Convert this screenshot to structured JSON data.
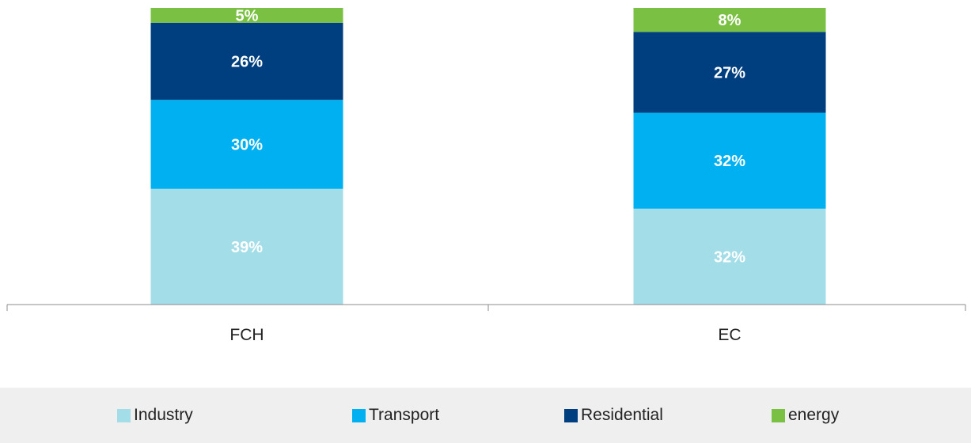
{
  "chart_data": {
    "type": "bar",
    "stacked": true,
    "categories": [
      "FCH",
      "EC"
    ],
    "series": [
      {
        "name": "Industry",
        "values": [
          39,
          32
        ],
        "labels": [
          "39%",
          "32%"
        ],
        "color": "#a3dde8"
      },
      {
        "name": "Transport",
        "values": [
          30,
          32
        ],
        "labels": [
          "30%",
          "32%"
        ],
        "color": "#00b0f0"
      },
      {
        "name": "Residential",
        "values": [
          26,
          27
        ],
        "labels": [
          "26%",
          "27%"
        ],
        "color": "#003f7f"
      },
      {
        "name": "energy",
        "values": [
          5,
          8
        ],
        "labels": [
          "5%",
          "8%"
        ],
        "color": "#7ac143"
      }
    ],
    "ylim": [
      0,
      100
    ],
    "grid": false,
    "legend": "bottom"
  }
}
